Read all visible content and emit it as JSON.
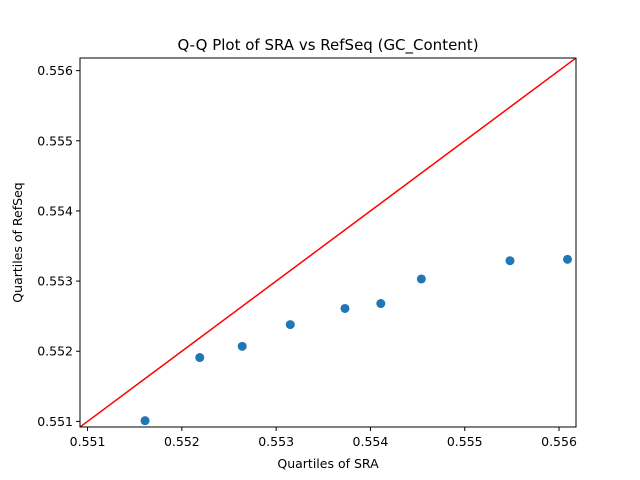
{
  "chart_data": {
    "type": "scatter",
    "title": "Q-Q Plot of SRA vs RefSeq (GC_Content)",
    "xlabel": "Quartiles of SRA",
    "ylabel": "Quartiles of RefSeq",
    "xlim": [
      0.55092,
      0.55618
    ],
    "ylim": [
      0.55092,
      0.55618
    ],
    "xticks": [
      "0.551",
      "0.552",
      "0.553",
      "0.554",
      "0.555",
      "0.556"
    ],
    "yticks": [
      "0.551",
      "0.552",
      "0.553",
      "0.554",
      "0.555",
      "0.556"
    ],
    "grid": false,
    "points": [
      {
        "x": 0.55161,
        "y": 0.55101
      },
      {
        "x": 0.55219,
        "y": 0.55191
      },
      {
        "x": 0.55264,
        "y": 0.55207
      },
      {
        "x": 0.55315,
        "y": 0.55238
      },
      {
        "x": 0.55373,
        "y": 0.55261
      },
      {
        "x": 0.55411,
        "y": 0.55268
      },
      {
        "x": 0.55454,
        "y": 0.55303
      },
      {
        "x": 0.55548,
        "y": 0.55329
      },
      {
        "x": 0.55609,
        "y": 0.55331
      }
    ],
    "reference_line": {
      "type": "y=x"
    },
    "colors": {
      "points": "#1f77b4",
      "reference_line": "#ff0000"
    }
  }
}
